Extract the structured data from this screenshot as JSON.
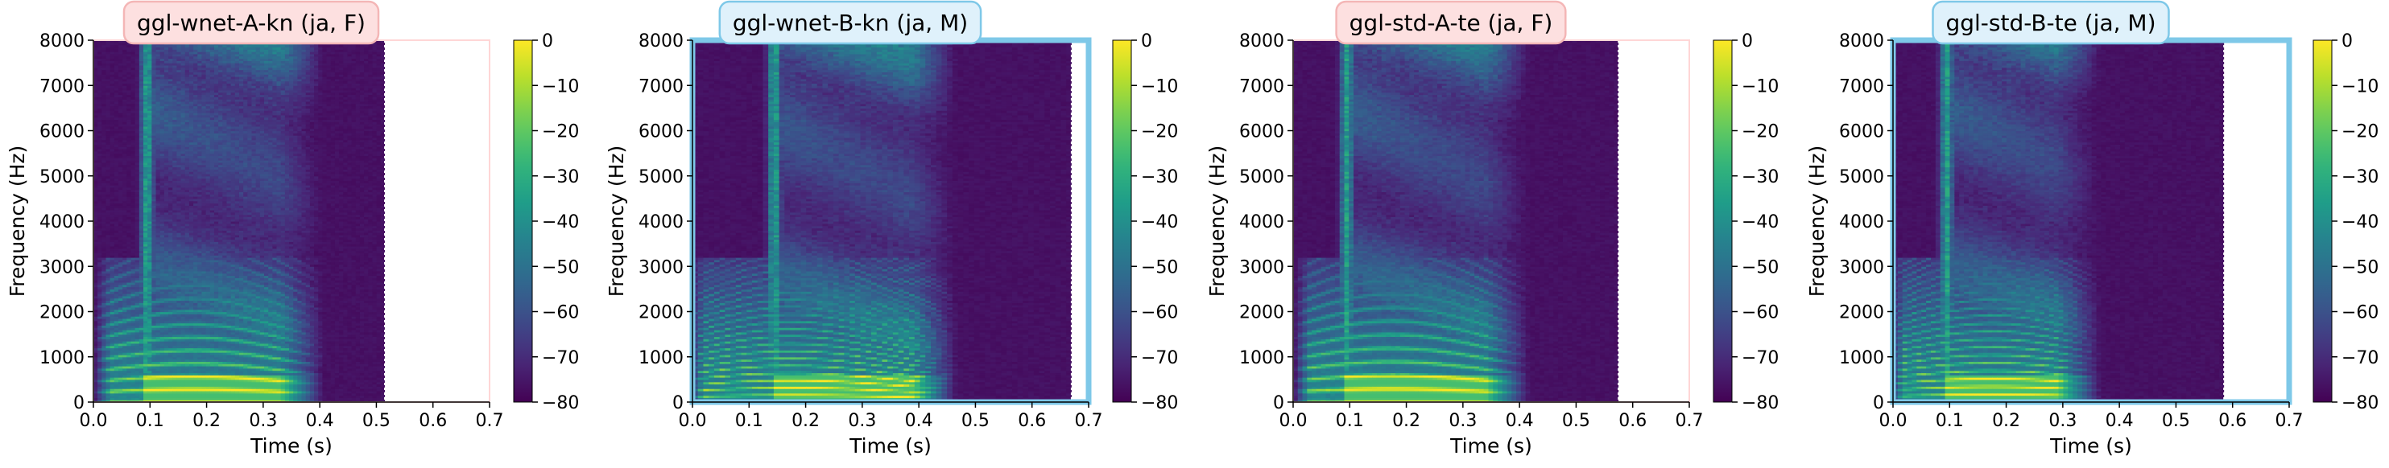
{
  "chart_data": [
    {
      "type": "heatmap",
      "title": "ggl-wnet-A-kn (ja, F)",
      "title_style": "pink",
      "xlabel": "Time (s)",
      "ylabel": "Frequency (Hz)",
      "xlim": [
        0,
        0.7
      ],
      "ylim": [
        0,
        8000
      ],
      "xticks": [
        "0.0",
        "0.1",
        "0.2",
        "0.3",
        "0.4",
        "0.5",
        "0.6",
        "0.7"
      ],
      "yticks": [
        "0",
        "1000",
        "2000",
        "3000",
        "4000",
        "5000",
        "6000",
        "7000",
        "8000"
      ],
      "colorbar": {
        "ticks": [
          "0",
          "−10",
          "−20",
          "−30",
          "−40",
          "−50",
          "−60",
          "−70",
          "−80"
        ],
        "range": [
          -80,
          0
        ]
      },
      "colormap": "viridis",
      "signal_end_s": 0.515,
      "speech": {
        "onset_s": 0.01,
        "offset_s": 0.41,
        "high_freq_start_s": 0.09,
        "f0_hz": 230,
        "harmonic_spacing_hz": 230
      },
      "frame_color": "#ffd6d6"
    },
    {
      "type": "heatmap",
      "title": "ggl-wnet-B-kn (ja, M)",
      "title_style": "blue",
      "xlabel": "Time (s)",
      "ylabel": "Frequency (Hz)",
      "xlim": [
        0,
        0.7
      ],
      "ylim": [
        0,
        8000
      ],
      "xticks": [
        "0.0",
        "0.1",
        "0.2",
        "0.3",
        "0.4",
        "0.5",
        "0.6",
        "0.7"
      ],
      "yticks": [
        "0",
        "1000",
        "2000",
        "3000",
        "4000",
        "5000",
        "6000",
        "7000",
        "8000"
      ],
      "colorbar": {
        "ticks": [
          "0",
          "−10",
          "−20",
          "−30",
          "−40",
          "−50",
          "−60",
          "−70",
          "−80"
        ],
        "range": [
          -80,
          0
        ]
      },
      "colormap": "viridis",
      "signal_end_s": 0.67,
      "speech": {
        "onset_s": 0.0,
        "offset_s": 0.47,
        "high_freq_start_s": 0.14,
        "f0_hz": 130,
        "harmonic_spacing_hz": 130
      },
      "frame_color": "#7ec8e8"
    },
    {
      "type": "heatmap",
      "title": "ggl-std-A-te (ja, F)",
      "title_style": "pink",
      "xlabel": "Time (s)",
      "ylabel": "Frequency (Hz)",
      "xlim": [
        0,
        0.7
      ],
      "ylim": [
        0,
        8000
      ],
      "xticks": [
        "0.0",
        "0.1",
        "0.2",
        "0.3",
        "0.4",
        "0.5",
        "0.6",
        "0.7"
      ],
      "yticks": [
        "0",
        "1000",
        "2000",
        "3000",
        "4000",
        "5000",
        "6000",
        "7000",
        "8000"
      ],
      "colorbar": {
        "ticks": [
          "0",
          "−10",
          "−20",
          "−30",
          "−40",
          "−50",
          "−60",
          "−70",
          "−80"
        ],
        "range": [
          -80,
          0
        ]
      },
      "colormap": "viridis",
      "signal_end_s": 0.575,
      "speech": {
        "onset_s": 0.01,
        "offset_s": 0.42,
        "high_freq_start_s": 0.09,
        "f0_hz": 240,
        "harmonic_spacing_hz": 240
      },
      "frame_color": "#ffd6d6"
    },
    {
      "type": "heatmap",
      "title": "ggl-std-B-te (ja, M)",
      "title_style": "blue",
      "xlabel": "Time (s)",
      "ylabel": "Frequency (Hz)",
      "xlim": [
        0,
        0.7
      ],
      "ylim": [
        0,
        8000
      ],
      "xticks": [
        "0.0",
        "0.1",
        "0.2",
        "0.3",
        "0.4",
        "0.5",
        "0.6",
        "0.7"
      ],
      "yticks": [
        "0",
        "1000",
        "2000",
        "3000",
        "4000",
        "5000",
        "6000",
        "7000",
        "8000"
      ],
      "colorbar": {
        "ticks": [
          "0",
          "−10",
          "−20",
          "−30",
          "−40",
          "−50",
          "−60",
          "−70",
          "−80"
        ],
        "range": [
          -80,
          0
        ]
      },
      "colormap": "viridis",
      "signal_end_s": 0.585,
      "speech": {
        "onset_s": 0.0,
        "offset_s": 0.37,
        "high_freq_start_s": 0.09,
        "f0_hz": 140,
        "harmonic_spacing_hz": 140
      },
      "frame_color": "#7ec8e8"
    }
  ],
  "colors": {
    "pink_title_bg": "#fde0e0",
    "pink_title_border": "#f4b6b6",
    "blue_title_bg": "#dff1fb",
    "blue_title_border": "#7ec8e8",
    "empty_region": "#ffffff",
    "signal_end_line": "#ffffff"
  }
}
